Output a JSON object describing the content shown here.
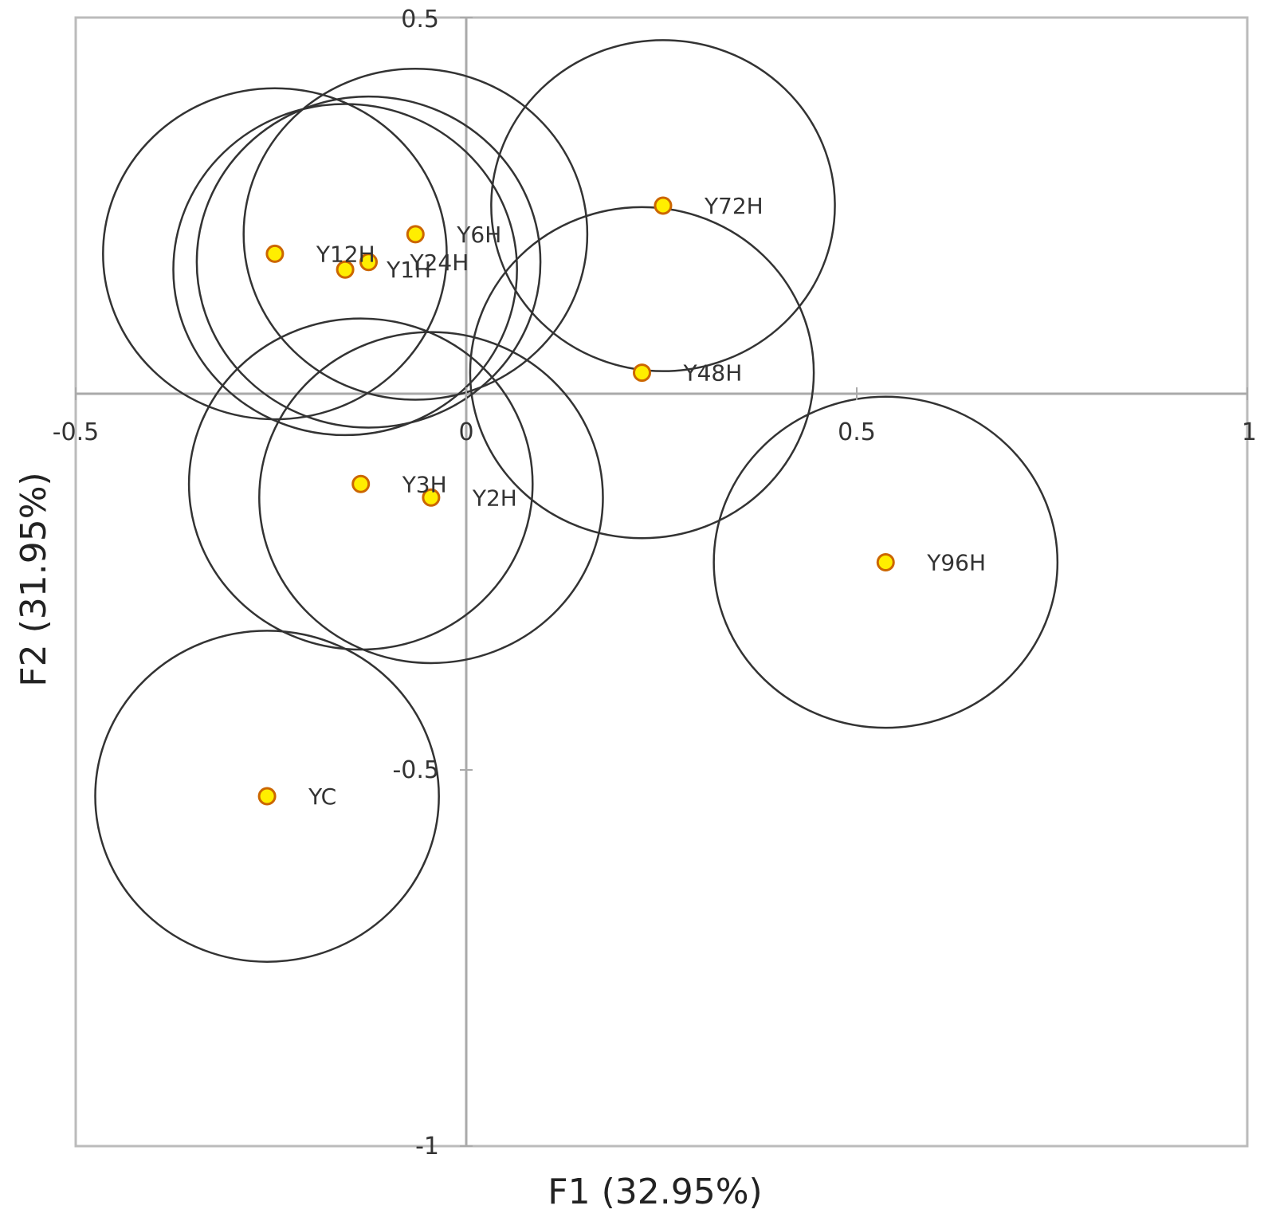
{
  "chart_data": {
    "type": "scatter",
    "xlabel": "F1 (32.95%)",
    "ylabel": "F2 (31.95%)",
    "xlim": [
      -0.5,
      1
    ],
    "ylim": [
      -1,
      0.5
    ],
    "x_ticks": [
      {
        "value": -0.5,
        "label": "-0.5"
      },
      {
        "value": 0,
        "label": "0"
      },
      {
        "value": 0.5,
        "label": "0.5"
      },
      {
        "value": 1,
        "label": "1"
      }
    ],
    "y_ticks": [
      {
        "value": 0.5,
        "label": "0.5"
      },
      {
        "value": -0.5,
        "label": "-0.5"
      },
      {
        "value": -1,
        "label": "-1"
      }
    ],
    "grid": false,
    "confidence_circle_radius": 0.22,
    "colors": {
      "point_fill": "#ffee00",
      "point_stroke": "#cc6600",
      "circle_stroke": "#333333",
      "frame": "#bbbbbb",
      "axis_line": "#aaaaaa"
    },
    "points": [
      {
        "label": "Y72H",
        "x": 0.252,
        "y": 0.25
      },
      {
        "label": "Y6H",
        "x": -0.065,
        "y": 0.212
      },
      {
        "label": "Y12H",
        "x": -0.245,
        "y": 0.186
      },
      {
        "label": "Y24H",
        "x": -0.125,
        "y": 0.175
      },
      {
        "label": "Y1H",
        "x": -0.155,
        "y": 0.165
      },
      {
        "label": "Y48H",
        "x": 0.225,
        "y": 0.028
      },
      {
        "label": "Y3H",
        "x": -0.135,
        "y": -0.12
      },
      {
        "label": "Y2H",
        "x": -0.045,
        "y": -0.138
      },
      {
        "label": "Y96H",
        "x": 0.537,
        "y": -0.224
      },
      {
        "label": "YC",
        "x": -0.255,
        "y": -0.535
      }
    ]
  }
}
